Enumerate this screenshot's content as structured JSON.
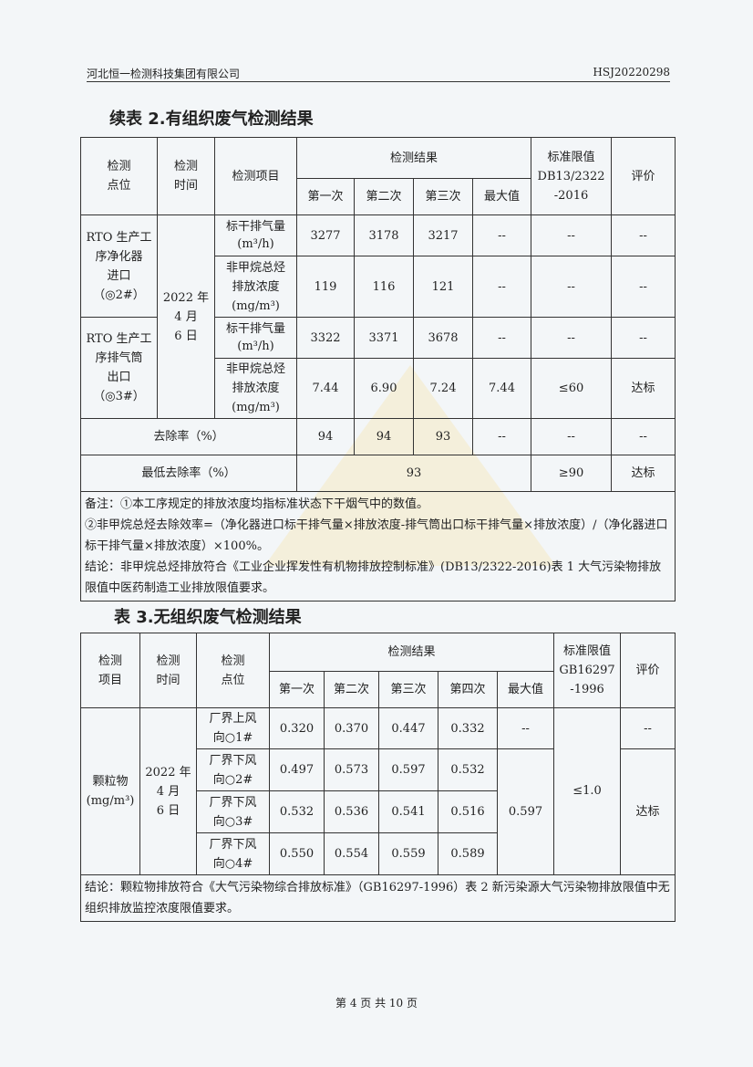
{
  "header": {
    "company": "河北恒一检测科技集团有限公司",
    "report_no": "HSJ20220298"
  },
  "table2": {
    "title": "续表 2.有组织废气检测结果",
    "h": {
      "point": "检测\n点位",
      "time": "检测\n时间",
      "item": "检测项目",
      "results": "检测结果",
      "r1": "第一次",
      "r2": "第二次",
      "r3": "第三次",
      "max": "最大值",
      "limit": "标准限值\nDB13/2322\n-2016",
      "eval": "评价"
    },
    "time": "2022 年\n4 月\n6 日",
    "points": [
      "RTO 生产工\n序净化器\n进口\n（◎2#）",
      "RTO 生产工\n序排气筒\n出口\n（◎3#）"
    ],
    "rows": [
      {
        "item": "标干排气量\n(m³/h)",
        "v": [
          "3277",
          "3178",
          "3217",
          "--",
          "--",
          "--"
        ]
      },
      {
        "item": "非甲烷总烃\n排放浓度\n(mg/m³)",
        "v": [
          "119",
          "116",
          "121",
          "--",
          "--",
          "--"
        ]
      },
      {
        "item": "标干排气量\n(m³/h)",
        "v": [
          "3322",
          "3371",
          "3678",
          "--",
          "--",
          "--"
        ]
      },
      {
        "item": "非甲烷总烃\n排放浓度\n(mg/m³)",
        "v": [
          "7.44",
          "6.90",
          "7.24",
          "7.44",
          "≤60",
          "达标"
        ]
      }
    ],
    "removal": {
      "label": "去除率（%）",
      "v": [
        "94",
        "94",
        "93",
        "--",
        "--",
        "--"
      ]
    },
    "min_removal": {
      "label": "最低去除率（%）",
      "value": "93",
      "limit": "≥90",
      "eval": "达标"
    },
    "notes": [
      "备注：①本工序规定的排放浓度均指标准状态下干烟气中的数值。",
      "②非甲烷总烃去除效率=（净化器进口标干排气量×排放浓度-排气筒出口标干排气量×排放浓度）/（净化器进口标干排气量×排放浓度）×100%。",
      "结论：非甲烷总烃排放符合《工业企业挥发性有机物排放控制标准》(DB13/2322-2016)表 1 大气污染物排放限值中医药制造工业排放限值要求。"
    ]
  },
  "table3": {
    "title": "表 3.无组织废气检测结果",
    "h": {
      "item": "检测\n项目",
      "time": "检测\n时间",
      "point": "检测\n点位",
      "results": "检测结果",
      "r1": "第一次",
      "r2": "第二次",
      "r3": "第三次",
      "r4": "第四次",
      "max": "最大值",
      "limit": "标准限值\nGB16297\n-1996",
      "eval": "评价"
    },
    "item": "颗粒物\n(mg/m³)",
    "time": "2022 年\n4 月\n6 日",
    "rows": [
      {
        "point": "厂界上风\n向○1#",
        "v": [
          "0.320",
          "0.370",
          "0.447",
          "0.332"
        ],
        "max": "--",
        "eval": "--"
      },
      {
        "point": "厂界下风\n向○2#",
        "v": [
          "0.497",
          "0.573",
          "0.597",
          "0.532"
        ]
      },
      {
        "point": "厂界下风\n向○3#",
        "v": [
          "0.532",
          "0.536",
          "0.541",
          "0.516"
        ]
      },
      {
        "point": "厂界下风\n向○4#",
        "v": [
          "0.550",
          "0.554",
          "0.559",
          "0.589"
        ]
      }
    ],
    "max_down": "0.597",
    "limit": "≤1.0",
    "eval_down": "达标",
    "conclusion": "结论：颗粒物排放符合《大气污染物综合排放标准》（GB16297-1996）表 2 新污染源大气污染物排放限值中无组织排放监控浓度限值要求。"
  },
  "footer": "第 4 页 共 10 页"
}
